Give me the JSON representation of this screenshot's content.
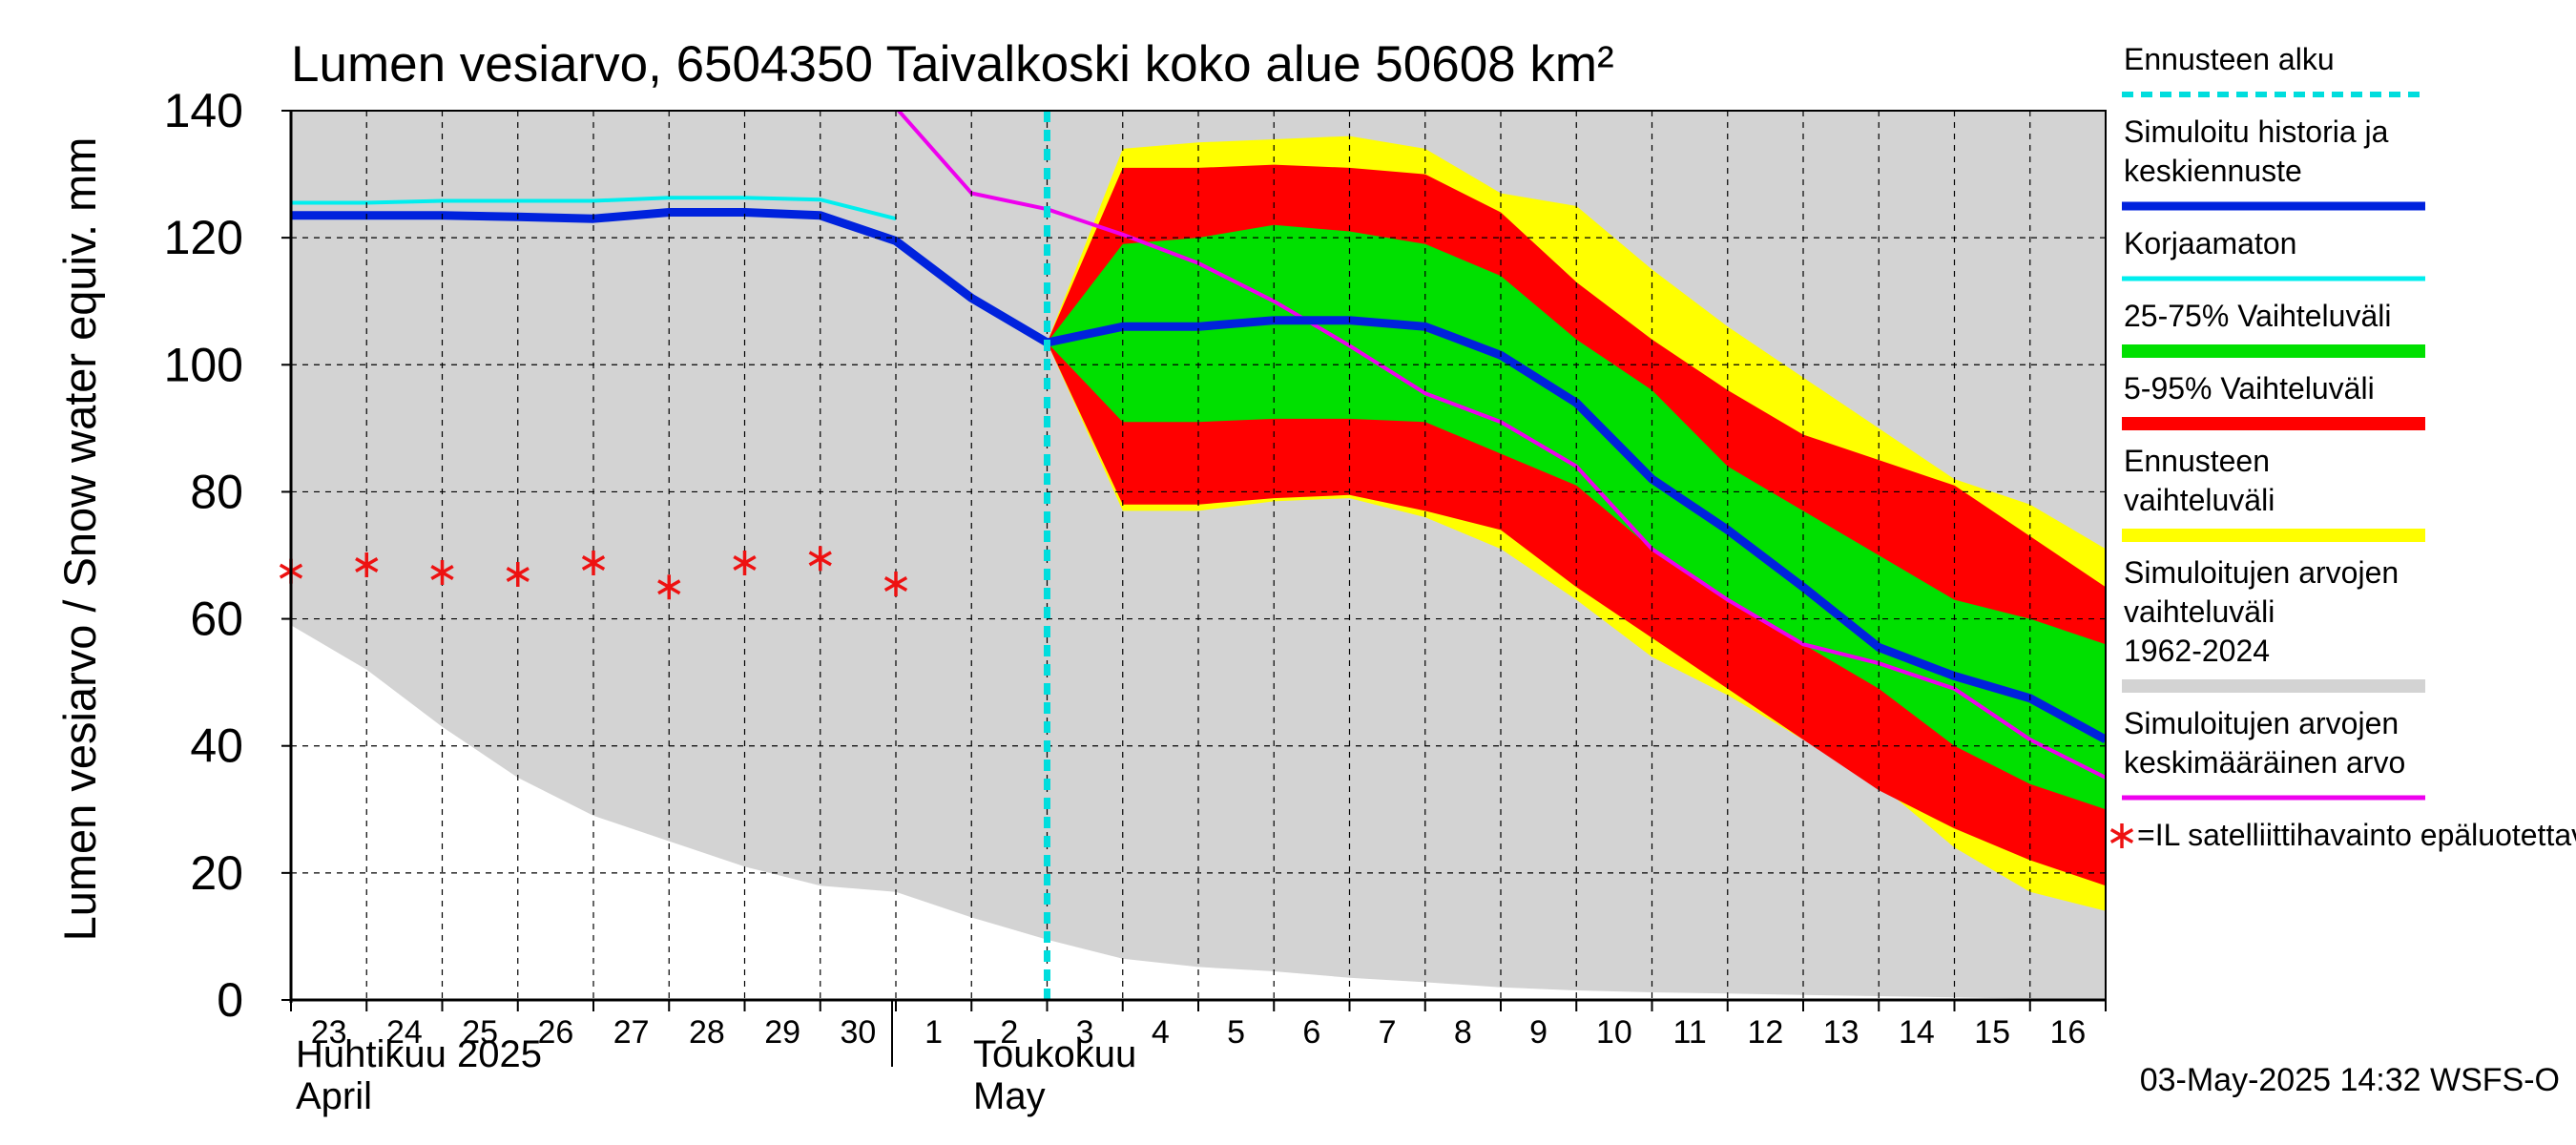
{
  "chart_data": {
    "type": "area",
    "title": "Lumen vesiarvo, 6504350 Taivalkoski koko alue 50608 km²",
    "ylabel": "Lumen vesiarvo / Snow water equiv.    mm",
    "ylim": [
      0,
      140
    ],
    "yticks": [
      "0",
      "20",
      "40",
      "60",
      "80",
      "100",
      "120",
      "140"
    ],
    "x_start_day": 23,
    "x_end_day": 47,
    "x_tick_labels": [
      "23",
      "24",
      "25",
      "26",
      "27",
      "28",
      "29",
      "30",
      "1",
      "2",
      "3",
      "4",
      "5",
      "6",
      "7",
      "8",
      "9",
      "10",
      "11",
      "12",
      "13",
      "14",
      "15",
      "16"
    ],
    "month_labels": [
      {
        "fi": "Huhtikuu  2025",
        "en": "April"
      },
      {
        "fi": "Toukokuu",
        "en": "May"
      }
    ],
    "forecast_start_day": 33,
    "timestamp": "03-May-2025 14:32 WSFS-O",
    "colors": {
      "hist_range": "#d3d3d3",
      "forecast_range": "#ffff00",
      "range_5_95": "#ff0000",
      "range_25_75": "#00e000",
      "simulated": "#0022dd",
      "uncorrected": "#00eeee",
      "mean": "#ee00ee",
      "satellite": "#ee1111",
      "forecast_line": "#00dddd"
    },
    "series": {
      "hist_range": {
        "days": [
          23,
          24,
          25,
          26,
          27,
          28,
          29,
          30,
          31,
          32,
          33,
          34,
          35,
          36,
          37,
          38,
          39,
          40,
          41,
          42,
          43,
          44,
          45,
          46,
          47
        ],
        "upper": [
          140,
          140,
          140,
          140,
          140,
          140,
          140,
          140,
          140,
          140,
          140,
          140,
          140,
          140,
          140,
          140,
          140,
          140,
          140,
          140,
          140,
          140,
          140,
          140,
          140
        ],
        "lower": [
          59,
          52,
          43,
          35,
          29,
          25,
          21,
          18,
          17,
          13,
          9.5,
          6.5,
          5.2,
          4.5,
          3.5,
          2.8,
          2.0,
          1.5,
          1.2,
          1.0,
          0.8,
          0.6,
          0.4,
          0.2,
          0
        ]
      },
      "forecast_range": {
        "days": [
          33,
          34,
          35,
          36,
          37,
          38,
          39,
          40,
          41,
          42,
          43,
          44,
          45,
          46,
          47
        ],
        "upper": [
          103.5,
          134,
          135,
          135.5,
          136,
          134,
          127,
          125,
          115,
          106,
          98,
          90,
          82,
          78,
          71
        ],
        "lower": [
          103.5,
          77,
          77,
          78.5,
          79,
          76,
          71,
          63,
          54,
          48,
          41,
          34,
          24,
          17,
          14
        ]
      },
      "range_5_95": {
        "days": [
          33,
          34,
          35,
          36,
          37,
          38,
          39,
          40,
          41,
          42,
          43,
          44,
          45,
          46,
          47
        ],
        "upper": [
          103.5,
          131,
          131,
          131.5,
          131,
          130,
          124,
          113,
          104,
          96,
          89,
          85,
          81,
          73,
          65
        ],
        "lower": [
          103.5,
          78,
          78,
          79,
          79.5,
          77,
          74,
          65,
          57,
          49,
          41,
          33,
          27,
          22,
          18
        ]
      },
      "range_25_75": {
        "days": [
          33,
          34,
          35,
          36,
          37,
          38,
          39,
          40,
          41,
          42,
          43,
          44,
          45,
          46,
          47
        ],
        "upper": [
          103.5,
          119,
          120,
          122,
          121,
          119,
          114,
          104,
          96,
          84,
          77,
          70,
          63,
          60,
          56
        ],
        "lower": [
          103.5,
          91,
          91,
          91.5,
          91.5,
          91,
          86,
          81,
          71,
          63,
          56,
          49,
          40,
          34,
          30
        ]
      },
      "simulated": {
        "days": [
          23,
          24,
          25,
          26,
          27,
          28,
          29,
          30,
          31,
          32,
          33,
          34,
          35,
          36,
          37,
          38,
          39,
          40,
          41,
          42,
          43,
          44,
          45,
          46,
          47
        ],
        "values": [
          123.5,
          123.5,
          123.5,
          123.3,
          123,
          124,
          124,
          123.5,
          119.5,
          110.5,
          103.5,
          106,
          106,
          107,
          107,
          106,
          101.5,
          94,
          82,
          74,
          65,
          55.5,
          51,
          47.5,
          41
        ]
      },
      "uncorrected": {
        "days": [
          23,
          24,
          25,
          26,
          27,
          28,
          29,
          30,
          31
        ],
        "values": [
          125.5,
          125.5,
          125.8,
          125.8,
          125.8,
          126.3,
          126.3,
          126,
          123
        ]
      },
      "mean": {
        "days": [
          31,
          32,
          33,
          34,
          35,
          36,
          37,
          38,
          39,
          40,
          41,
          42,
          43,
          44,
          45,
          46,
          47
        ],
        "values": [
          140.5,
          127,
          124.5,
          120.5,
          116,
          110,
          103,
          95.5,
          91,
          84,
          71,
          63,
          56,
          53,
          49,
          41,
          35
        ]
      },
      "satellite": {
        "days": [
          23,
          24,
          25,
          26,
          27,
          28,
          29,
          30,
          31
        ],
        "values": [
          67.5,
          68.5,
          67.3,
          67,
          68.8,
          65,
          68.8,
          69.5,
          65.5
        ]
      }
    },
    "legend": [
      {
        "key": "forecast_line",
        "label": "Ennusteen alku",
        "style": "dashed"
      },
      {
        "key": "simulated",
        "label": "Simuloitu historia ja keskiennuste",
        "style": "line"
      },
      {
        "key": "uncorrected",
        "label": "Korjaamaton",
        "style": "thin"
      },
      {
        "key": "range_25_75",
        "label": "25-75% Vaihteluväli",
        "style": "band"
      },
      {
        "key": "range_5_95",
        "label": "5-95% Vaihteluväli",
        "style": "band"
      },
      {
        "key": "forecast_range",
        "label": "Ennusteen vaihteluväli",
        "style": "band"
      },
      {
        "key": "hist_range",
        "label": "Simuloitujen arvojen vaihteluväli 1962-2024",
        "style": "band"
      },
      {
        "key": "mean",
        "label": "Simuloitujen arvojen keskimääräinen arvo",
        "style": "thin"
      },
      {
        "key": "satellite",
        "label": "=IL satelliittihavainto epäluotettava",
        "style": "marker"
      }
    ]
  }
}
